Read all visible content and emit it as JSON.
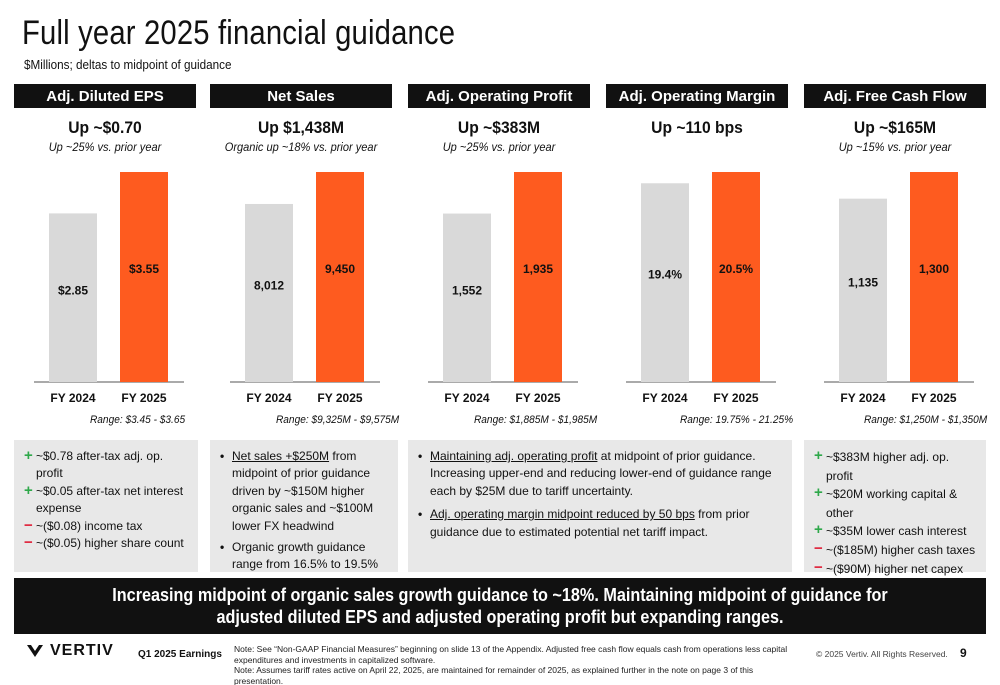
{
  "header": {
    "title": "Full year 2025 financial guidance",
    "subtitle": "$Millions; deltas to midpoint of guidance"
  },
  "panels": [
    {
      "header": "Adj. Diluted EPS",
      "headline": "Up ~$0.70",
      "delta": "Up ~25% vs. prior year",
      "range": "Range: $3.45 - $3.65"
    },
    {
      "header": "Net Sales",
      "headline": "Up $1,438M",
      "delta": "Organic up ~18% vs. prior year",
      "range": "Range: $9,325M - $9,575M"
    },
    {
      "header": "Adj. Operating Profit",
      "headline": "Up ~$383M",
      "delta": "Up ~25% vs. prior year",
      "range": "Range: $1,885M - $1,985M"
    },
    {
      "header": "Adj. Operating Margin",
      "headline": "Up ~110 bps",
      "delta": "",
      "range": "Range: 19.75% - 21.25%"
    },
    {
      "header": "Adj. Free Cash Flow",
      "headline": "Up ~$165M",
      "delta": "Up ~15% vs. prior year",
      "range": "Range: $1,250M - $1,350M"
    }
  ],
  "chart_data": [
    {
      "type": "bar",
      "categories": [
        "FY 2024",
        "FY 2025"
      ],
      "values": [
        2.85,
        3.55
      ],
      "labels": [
        "$2.85",
        "$3.55"
      ],
      "colors": [
        "#d9d9d9",
        "#fe5b1f"
      ]
    },
    {
      "type": "bar",
      "categories": [
        "FY 2024",
        "FY 2025"
      ],
      "values": [
        8012,
        9450
      ],
      "labels": [
        "8,012",
        "9,450"
      ],
      "colors": [
        "#d9d9d9",
        "#fe5b1f"
      ]
    },
    {
      "type": "bar",
      "categories": [
        "FY 2024",
        "FY 2025"
      ],
      "values": [
        1552,
        1935
      ],
      "labels": [
        "1,552",
        "1,935"
      ],
      "colors": [
        "#d9d9d9",
        "#fe5b1f"
      ]
    },
    {
      "type": "bar",
      "categories": [
        "FY 2024",
        "FY 2025"
      ],
      "values": [
        19.4,
        20.5
      ],
      "labels": [
        "19.4%",
        "20.5%"
      ],
      "colors": [
        "#d9d9d9",
        "#fe5b1f"
      ]
    },
    {
      "type": "bar",
      "categories": [
        "FY 2024",
        "FY 2025"
      ],
      "values": [
        1135,
        1300
      ],
      "labels": [
        "1,135",
        "1,300"
      ],
      "colors": [
        "#d9d9d9",
        "#fe5b1f"
      ]
    }
  ],
  "boxes": {
    "eps": [
      {
        "sign": "+",
        "text": "~$0.78 after-tax adj. op. profit"
      },
      {
        "sign": "+",
        "text": "~$0.05 after-tax net interest expense"
      },
      {
        "sign": "−",
        "text": "~($0.08) income tax"
      },
      {
        "sign": "−",
        "text": "~($0.05) higher share count"
      }
    ],
    "net_sales": [
      {
        "underlined": "Net sales +$250M",
        "text": " from midpoint of prior guidance driven by ~$150M higher organic sales and ~$100M lower FX headwind"
      },
      {
        "underlined": "",
        "text": "Organic growth guidance range from 16.5% to 19.5%"
      }
    ],
    "op_profit": [
      {
        "underlined": "Maintaining adj. operating profit",
        "text": " at midpoint of prior guidance. Increasing upper-end and reducing lower-end of guidance range each by $25M due to tariff uncertainty."
      },
      {
        "underlined": "Adj. operating margin midpoint reduced by 50 bps",
        "text": " from prior guidance due to estimated potential net tariff impact."
      }
    ],
    "fcf": [
      {
        "sign": "+",
        "text": "~$383M higher adj. op. profit"
      },
      {
        "sign": "+",
        "text": "~$20M working capital & other"
      },
      {
        "sign": "+",
        "text": "~$35M lower cash interest"
      },
      {
        "sign": "−",
        "text": "~($185M) higher cash taxes"
      },
      {
        "sign": "−",
        "text": "~($90M) higher net capex"
      }
    ]
  },
  "banner": "Increasing midpoint of organic sales growth guidance to ~18%. Maintaining midpoint of guidance for adjusted diluted EPS and adjusted operating profit but expanding ranges.",
  "footer": {
    "logo_text": "VERTIV",
    "label": "Q1 2025 Earnings",
    "note1": "Note: See “Non-GAAP Financial Measures” beginning on slide 13 of the Appendix. Adjusted free cash flow equals cash from operations less capital expenditures and investments in capitalized software.",
    "note2": "Note: Assumes tariff rates active on April 22, 2025, are maintained for remainder of 2025, as explained further in the note on page 3 of this presentation.",
    "copyright": "© 2025 Vertiv. All Rights Reserved.",
    "page_number": "9"
  }
}
